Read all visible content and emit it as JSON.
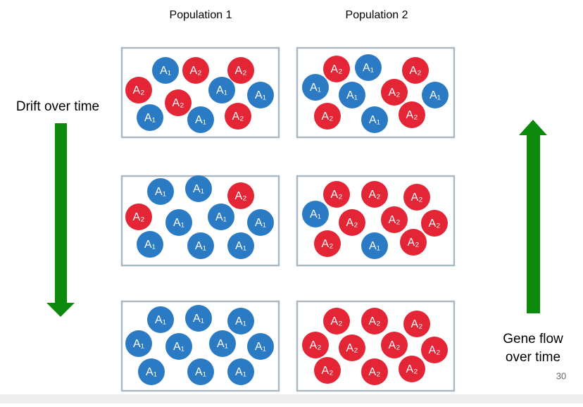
{
  "population_labels": [
    "Population 1",
    "Population 2"
  ],
  "left_label": "Drift over time",
  "right_label": [
    "Gene flow",
    "over time"
  ],
  "slide_number": "30",
  "allele_colors": {
    "A₁": "#2b7bc4",
    "A₂": "#e32535"
  },
  "panels": [
    {
      "alleles": [
        "A₁",
        "A₂",
        "A₂",
        "A₂",
        "A₁",
        "A₁",
        "A₂",
        "A₁",
        "A₁",
        "A₂"
      ]
    },
    {
      "alleles": [
        "A₂",
        "A₁",
        "A₂",
        "A₁",
        "A₁",
        "A₂",
        "A₁",
        "A₂",
        "A₁",
        "A₂"
      ]
    },
    {
      "alleles": [
        "A₁",
        "A₁",
        "A₂",
        "A₂",
        "A₁",
        "A₁",
        "A₁",
        "A₁",
        "A₁",
        "A₁"
      ]
    },
    {
      "alleles": [
        "A₂",
        "A₂",
        "A₂",
        "A₁",
        "A₂",
        "A₂",
        "A₂",
        "A₂",
        "A₁",
        "A₂"
      ]
    },
    {
      "alleles": [
        "A₁",
        "A₁",
        "A₁",
        "A₁",
        "A₁",
        "A₁",
        "A₁",
        "A₁",
        "A₁",
        "A₁"
      ]
    },
    {
      "alleles": [
        "A₂",
        "A₂",
        "A₂",
        "A₂",
        "A₂",
        "A₂",
        "A₂",
        "A₂",
        "A₂",
        "A₂"
      ]
    }
  ]
}
